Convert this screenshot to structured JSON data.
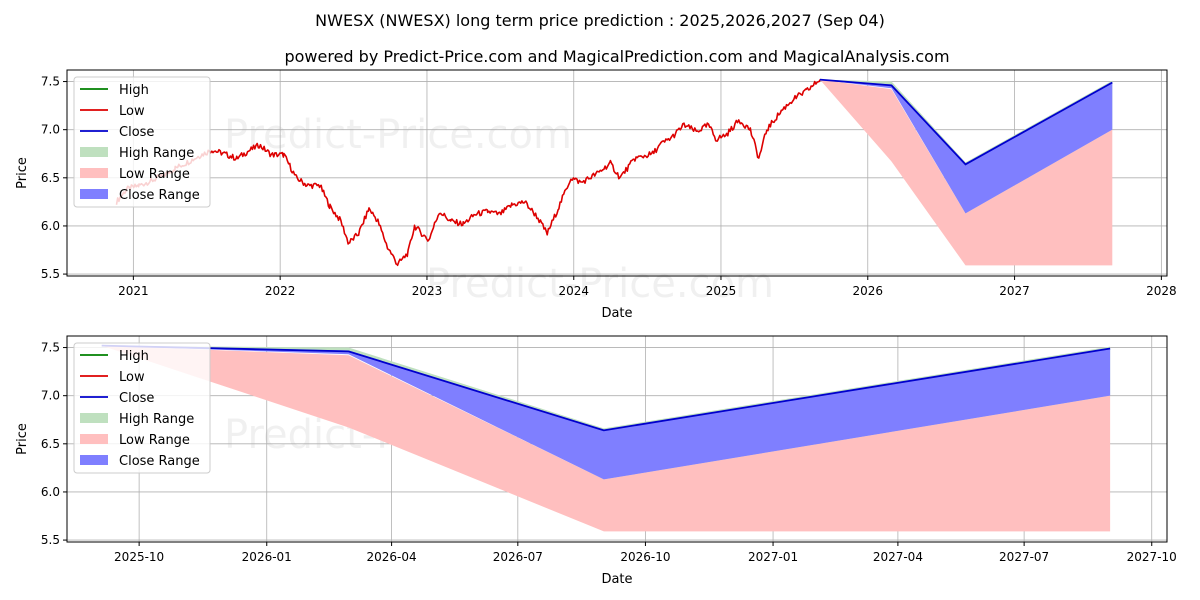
{
  "header": {
    "title": "NWESX (NWESX) long term price prediction : 2025,2026,2027 (Sep 04)",
    "subtitle": "powered by Predict-Price.com and MagicalPrediction.com and MagicalAnalysis.com"
  },
  "watermark": "Predict-Price.com",
  "colors": {
    "high": "#008000",
    "low": "#dd0000",
    "close": "#0000cc",
    "high_range": "#bfe0bf",
    "low_range": "#ffbfbf",
    "close_range": "#7f7fff",
    "grid": "#b0b0b0"
  },
  "legend": {
    "placement": "upper-left",
    "items": [
      {
        "key": "high",
        "label": "High",
        "kind": "line"
      },
      {
        "key": "low",
        "label": "Low",
        "kind": "line"
      },
      {
        "key": "close",
        "label": "Close",
        "kind": "line"
      },
      {
        "key": "high_range",
        "label": "High Range",
        "kind": "patch"
      },
      {
        "key": "low_range",
        "label": "Low Range",
        "kind": "patch"
      },
      {
        "key": "close_range",
        "label": "Close Range",
        "kind": "patch"
      }
    ]
  },
  "chart_data": [
    {
      "type": "line",
      "xlabel": "Date",
      "ylabel": "Price",
      "xlim": [
        "2020-07-20",
        "2028-01-15"
      ],
      "ylim": [
        5.48,
        7.62
      ],
      "grid": true,
      "x_ticks": [
        {
          "date": "2021-01-01",
          "label": "2021"
        },
        {
          "date": "2022-01-01",
          "label": "2022"
        },
        {
          "date": "2023-01-01",
          "label": "2023"
        },
        {
          "date": "2024-01-01",
          "label": "2024"
        },
        {
          "date": "2025-01-01",
          "label": "2025"
        },
        {
          "date": "2026-01-01",
          "label": "2026"
        },
        {
          "date": "2027-01-01",
          "label": "2027"
        },
        {
          "date": "2028-01-01",
          "label": "2028"
        }
      ],
      "y_ticks": [
        5.5,
        6.0,
        6.5,
        7.0,
        7.5
      ],
      "historical_low": [
        [
          "2020-11-20",
          6.25
        ],
        [
          "2020-12-15",
          6.38
        ],
        [
          "2021-01-15",
          6.42
        ],
        [
          "2021-02-15",
          6.47
        ],
        [
          "2021-03-15",
          6.52
        ],
        [
          "2021-04-15",
          6.6
        ],
        [
          "2021-05-15",
          6.66
        ],
        [
          "2021-06-15",
          6.73
        ],
        [
          "2021-07-15",
          6.79
        ],
        [
          "2021-08-15",
          6.75
        ],
        [
          "2021-09-15",
          6.7
        ],
        [
          "2021-10-15",
          6.78
        ],
        [
          "2021-11-10",
          6.84
        ],
        [
          "2021-12-10",
          6.74
        ],
        [
          "2022-01-10",
          6.74
        ],
        [
          "2022-02-10",
          6.5
        ],
        [
          "2022-03-10",
          6.42
        ],
        [
          "2022-04-10",
          6.42
        ],
        [
          "2022-05-05",
          6.2
        ],
        [
          "2022-06-01",
          6.05
        ],
        [
          "2022-06-20",
          5.82
        ],
        [
          "2022-07-15",
          5.92
        ],
        [
          "2022-08-10",
          6.18
        ],
        [
          "2022-09-01",
          6.05
        ],
        [
          "2022-09-25",
          5.78
        ],
        [
          "2022-10-20",
          5.6
        ],
        [
          "2022-11-15",
          5.72
        ],
        [
          "2022-12-01",
          6.0
        ],
        [
          "2023-01-05",
          5.85
        ],
        [
          "2023-02-01",
          6.15
        ],
        [
          "2023-03-01",
          6.05
        ],
        [
          "2023-04-01",
          6.02
        ],
        [
          "2023-05-01",
          6.12
        ],
        [
          "2023-06-01",
          6.15
        ],
        [
          "2023-07-01",
          6.12
        ],
        [
          "2023-08-01",
          6.22
        ],
        [
          "2023-09-01",
          6.25
        ],
        [
          "2023-10-01",
          6.1
        ],
        [
          "2023-10-27",
          5.92
        ],
        [
          "2023-11-25",
          6.2
        ],
        [
          "2023-12-25",
          6.5
        ],
        [
          "2024-01-20",
          6.45
        ],
        [
          "2024-03-01",
          6.55
        ],
        [
          "2024-04-01",
          6.65
        ],
        [
          "2024-04-25",
          6.5
        ],
        [
          "2024-06-01",
          6.7
        ],
        [
          "2024-07-15",
          6.75
        ],
        [
          "2024-08-05",
          6.85
        ],
        [
          "2024-09-01",
          6.92
        ],
        [
          "2024-10-01",
          7.05
        ],
        [
          "2024-11-01",
          6.98
        ],
        [
          "2024-12-01",
          7.05
        ],
        [
          "2024-12-20",
          6.9
        ],
        [
          "2025-01-15",
          6.95
        ],
        [
          "2025-02-15",
          7.1
        ],
        [
          "2025-03-15",
          7.0
        ],
        [
          "2025-04-05",
          6.7
        ],
        [
          "2025-04-25",
          7.0
        ],
        [
          "2025-06-01",
          7.2
        ],
        [
          "2025-07-01",
          7.32
        ],
        [
          "2025-08-01",
          7.4
        ],
        [
          "2025-09-04",
          7.52
        ]
      ],
      "forecast_dates": [
        "2025-09-04",
        "2026-03-01",
        "2026-09-01",
        "2027-09-01"
      ],
      "high_range": {
        "upper": [
          7.52,
          7.5,
          6.66,
          7.51
        ],
        "lower": [
          7.52,
          7.46,
          6.13,
          7.0
        ]
      },
      "low_range": {
        "upper": [
          7.52,
          7.42,
          6.13,
          7.0
        ],
        "lower": [
          7.52,
          6.67,
          5.59,
          5.59
        ]
      },
      "close_range": {
        "upper": [
          7.52,
          7.47,
          6.64,
          7.49
        ],
        "lower": [
          7.52,
          7.43,
          6.13,
          7.0
        ]
      },
      "close_line": [
        7.52,
        7.46,
        6.64,
        7.49
      ]
    },
    {
      "type": "line",
      "xlabel": "Date",
      "ylabel": "Price",
      "xlim": [
        "2025-08-10",
        "2027-10-12"
      ],
      "ylim": [
        5.48,
        7.62
      ],
      "grid": true,
      "x_ticks": [
        {
          "date": "2025-10-01",
          "label": "2025-10"
        },
        {
          "date": "2026-01-01",
          "label": "2026-01"
        },
        {
          "date": "2026-04-01",
          "label": "2026-04"
        },
        {
          "date": "2026-07-01",
          "label": "2026-07"
        },
        {
          "date": "2026-10-01",
          "label": "2026-10"
        },
        {
          "date": "2027-01-01",
          "label": "2027-01"
        },
        {
          "date": "2027-04-01",
          "label": "2027-04"
        },
        {
          "date": "2027-07-01",
          "label": "2027-07"
        },
        {
          "date": "2027-10-01",
          "label": "2027-10"
        }
      ],
      "y_ticks": [
        5.5,
        6.0,
        6.5,
        7.0,
        7.5
      ],
      "forecast_dates": [
        "2025-09-04",
        "2026-03-01",
        "2026-09-01",
        "2027-09-01"
      ],
      "high_range": {
        "upper": [
          7.52,
          7.5,
          6.66,
          7.51
        ],
        "lower": [
          7.52,
          7.46,
          6.13,
          7.0
        ]
      },
      "low_range": {
        "upper": [
          7.52,
          7.42,
          6.13,
          7.0
        ],
        "lower": [
          7.52,
          6.67,
          5.59,
          5.59
        ]
      },
      "close_range": {
        "upper": [
          7.52,
          7.47,
          6.64,
          7.49
        ],
        "lower": [
          7.52,
          7.43,
          6.13,
          7.0
        ]
      },
      "close_line": [
        7.52,
        7.46,
        6.64,
        7.49
      ]
    }
  ]
}
